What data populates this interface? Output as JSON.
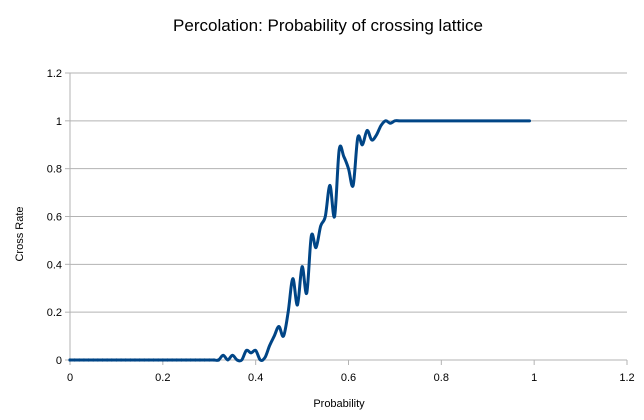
{
  "chart_data": {
    "type": "line",
    "title": "Percolation: Probability of crossing lattice",
    "xlabel": "Probability",
    "ylabel": "Cross Rate",
    "xlim": [
      0,
      1.2
    ],
    "ylim": [
      0,
      1.2
    ],
    "xticks": [
      "0",
      "0.2",
      "0.4",
      "0.6",
      "0.8",
      "1",
      "1.2"
    ],
    "yticks": [
      "0",
      "0.2",
      "0.4",
      "0.6",
      "0.8",
      "1",
      "1.2"
    ],
    "grid": "horizontal",
    "legend": "none",
    "line_color": "#004586",
    "series": [
      {
        "x": [
          0.0,
          0.01,
          0.02,
          0.03,
          0.04,
          0.05,
          0.06,
          0.07,
          0.08,
          0.09,
          0.1,
          0.11,
          0.12,
          0.13,
          0.14,
          0.15,
          0.16,
          0.17,
          0.18,
          0.19,
          0.2,
          0.21,
          0.22,
          0.23,
          0.24,
          0.25,
          0.26,
          0.27,
          0.28,
          0.29,
          0.3,
          0.31,
          0.32,
          0.33,
          0.34,
          0.35,
          0.36,
          0.37,
          0.38,
          0.39,
          0.4,
          0.41,
          0.42,
          0.43,
          0.44,
          0.45,
          0.46,
          0.47,
          0.48,
          0.49,
          0.5,
          0.51,
          0.52,
          0.53,
          0.54,
          0.55,
          0.56,
          0.57,
          0.58,
          0.59,
          0.6,
          0.61,
          0.62,
          0.63,
          0.64,
          0.65,
          0.66,
          0.67,
          0.68,
          0.69,
          0.7,
          0.71,
          0.72,
          0.73,
          0.74,
          0.75,
          0.76,
          0.77,
          0.78,
          0.79,
          0.8,
          0.81,
          0.82,
          0.83,
          0.84,
          0.85,
          0.86,
          0.87,
          0.88,
          0.89,
          0.9,
          0.91,
          0.92,
          0.93,
          0.94,
          0.95,
          0.96,
          0.97,
          0.98,
          0.99
        ],
        "values": [
          0,
          0,
          0,
          0,
          0,
          0,
          0,
          0,
          0,
          0,
          0,
          0,
          0,
          0,
          0,
          0,
          0,
          0,
          0,
          0,
          0,
          0,
          0,
          0,
          0,
          0,
          0,
          0,
          0,
          0,
          0,
          0,
          0,
          0.02,
          0,
          0.02,
          0,
          0,
          0.04,
          0.03,
          0.04,
          0,
          0.01,
          0.06,
          0.1,
          0.14,
          0.1,
          0.2,
          0.34,
          0.23,
          0.39,
          0.28,
          0.52,
          0.47,
          0.56,
          0.6,
          0.73,
          0.6,
          0.88,
          0.85,
          0.8,
          0.73,
          0.93,
          0.9,
          0.96,
          0.92,
          0.94,
          0.98,
          1.0,
          0.99,
          1.0,
          1.0,
          1.0,
          1.0,
          1.0,
          1.0,
          1.0,
          1.0,
          1.0,
          1.0,
          1.0,
          1.0,
          1.0,
          1.0,
          1.0,
          1.0,
          1.0,
          1.0,
          1.0,
          1.0,
          1.0,
          1.0,
          1.0,
          1.0,
          1.0,
          1.0,
          1.0,
          1.0,
          1.0,
          1.0
        ]
      }
    ]
  }
}
